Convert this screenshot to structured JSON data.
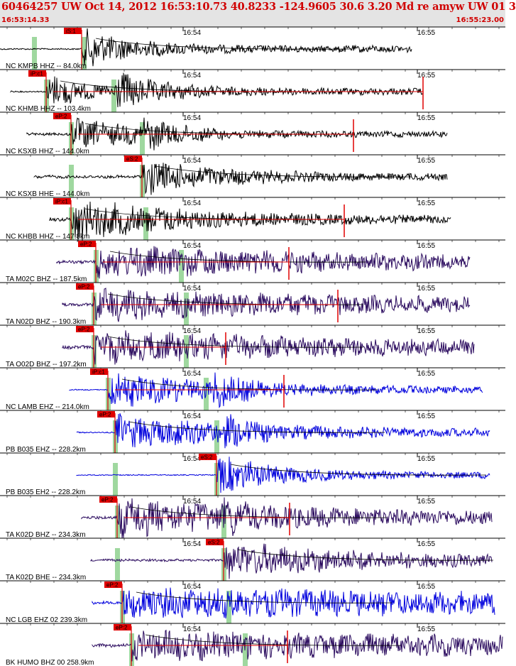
{
  "header": {
    "title": "60464257 UW Oct 14, 2012 16:53:10.73   40.8233 -124.9605 30.6 3.20 Md re amyw UW 01   3",
    "start_time": "16:53:14.33",
    "end_time": "16:55:23.00"
  },
  "chart_data": {
    "type": "line",
    "title": "60464257 UW Oct 14, 2012 16:53:10.73   40.8233 -124.9605 30.6 3.20 Md re amyw UW 01   3",
    "x_range": [
      "16:53:14.33",
      "16:55:23.00"
    ],
    "time_marks": [
      "16:54",
      "16:55"
    ],
    "colors": {
      "short_period": "#0000dd",
      "broadband_ta": "#2a0a5e",
      "broadband": "#000000",
      "pick": "#e00000",
      "window": "#9fd89f"
    },
    "series": [
      {
        "name": "NC KMPB HHZ -- 84.0km",
        "pick": "iS:1",
        "color": "#000000"
      },
      {
        "name": "NC KHMB HHZ -- 103.4km",
        "pick": "iP:c1",
        "color": "#000000"
      },
      {
        "name": "NC KSXB HHZ -- 144.0km",
        "pick": "eP:2",
        "color": "#000000"
      },
      {
        "name": "NC KSXB HHE -- 144.0km",
        "pick": "eS:2",
        "color": "#000000"
      },
      {
        "name": "NC KHBB HHZ -- 147.8km",
        "pick": "iP:c1",
        "color": "#000000"
      },
      {
        "name": "TA M02C BHZ -- 187.5km",
        "pick": "eP:2",
        "color": "#2a0a5e"
      },
      {
        "name": "TA N02D BHZ -- 190.3km",
        "pick": "eP:2",
        "color": "#2a0a5e"
      },
      {
        "name": "TA O02D BHZ -- 197.2km",
        "pick": "eP:2",
        "color": "#2a0a5e"
      },
      {
        "name": "NC LAMB EHZ -- 214.0km",
        "pick": "iP:c1",
        "color": "#0000dd"
      },
      {
        "name": "PB B035 EHZ -- 228.2km",
        "pick": "eP:2",
        "color": "#0000dd"
      },
      {
        "name": "PB B035 EH2 -- 228.2km",
        "pick": "eS:2",
        "color": "#0000dd"
      },
      {
        "name": "TA K02D BHZ -- 234.3km",
        "pick": "eP:2",
        "color": "#2a0a5e"
      },
      {
        "name": "TA K02D BHE -- 234.3km",
        "pick": "eS:2",
        "color": "#2a0a5e"
      },
      {
        "name": "NC LGB EHZ 02 239.3km",
        "pick": "eP:2",
        "color": "#0000dd"
      },
      {
        "name": "BK HUMO BHZ 00 258.9km",
        "pick": "eP:2",
        "color": "#2a0a5e"
      }
    ]
  }
}
